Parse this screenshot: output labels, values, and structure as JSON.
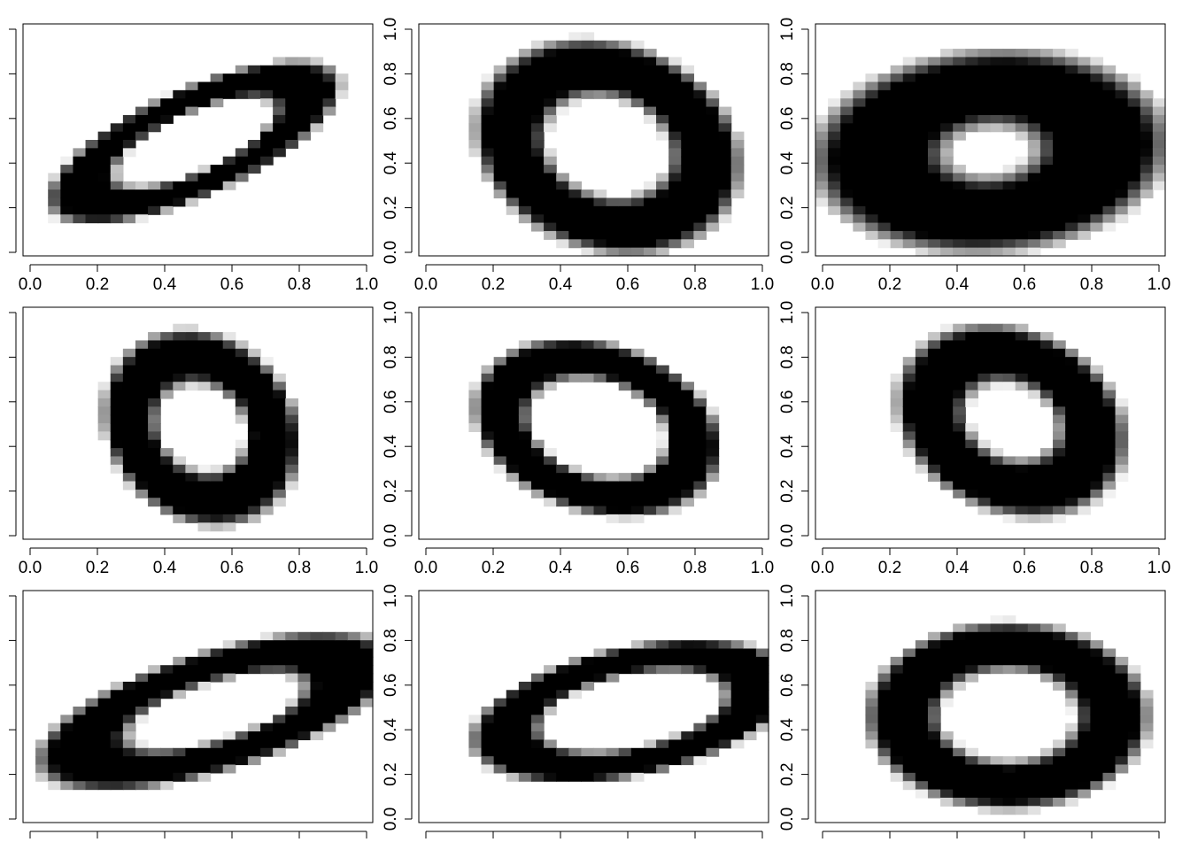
{
  "chart_data": {
    "type": "heatmap",
    "description_kind": "grid of 9 grayscale handwritten digit images (all zeros)",
    "rows": 3,
    "cols": 3,
    "xlim": [
      0,
      1
    ],
    "ylim": [
      0,
      1
    ],
    "x_ticks": [
      "0.0",
      "0.2",
      "0.4",
      "0.6",
      "0.8",
      "1.0"
    ],
    "y_ticks": [
      "0.0",
      "0.2",
      "0.4",
      "0.6",
      "0.8",
      "1.0"
    ],
    "colors": {
      "ink": "#000000",
      "paper": "#ffffff",
      "frame": "#000000"
    },
    "panels": [
      {
        "row": 0,
        "col": 0,
        "shape": "ellipse",
        "cx": 0.49,
        "cy": 0.49,
        "rx": 0.39,
        "ry": 0.16,
        "angle_deg": 38,
        "stroke": 0.055,
        "x_tick_labels_shown": true,
        "y_tick_labels_shown": false
      },
      {
        "row": 0,
        "col": 1,
        "shape": "ellipse",
        "cx": 0.54,
        "cy": 0.47,
        "rx": 0.27,
        "ry": 0.35,
        "angle_deg": 20,
        "stroke": 0.075,
        "x_tick_labels_shown": true,
        "y_tick_labels_shown": true
      },
      {
        "row": 0,
        "col": 2,
        "shape": "ellipse",
        "cx": 0.5,
        "cy": 0.45,
        "rx": 0.32,
        "ry": 0.27,
        "angle_deg": 15,
        "stroke": 0.12,
        "x_tick_labels_shown": true,
        "y_tick_labels_shown": true
      },
      {
        "row": 1,
        "col": 0,
        "shape": "ellipse",
        "cx": 0.51,
        "cy": 0.48,
        "rx": 0.2,
        "ry": 0.31,
        "angle_deg": 10,
        "stroke": 0.065,
        "x_tick_labels_shown": true,
        "y_tick_labels_shown": false
      },
      {
        "row": 1,
        "col": 1,
        "shape": "ellipse",
        "cx": 0.51,
        "cy": 0.48,
        "rx": 0.25,
        "ry": 0.32,
        "angle_deg": 35,
        "stroke": 0.055,
        "x_tick_labels_shown": true,
        "y_tick_labels_shown": true
      },
      {
        "row": 1,
        "col": 2,
        "shape": "ellipse",
        "cx": 0.56,
        "cy": 0.51,
        "rx": 0.22,
        "ry": 0.3,
        "angle_deg": 20,
        "stroke": 0.075,
        "x_tick_labels_shown": true,
        "y_tick_labels_shown": true
      },
      {
        "row": 2,
        "col": 0,
        "shape": "ellipse",
        "cx": 0.55,
        "cy": 0.48,
        "rx": 0.42,
        "ry": 0.18,
        "angle_deg": 28,
        "stroke": 0.07,
        "x_tick_labels_shown": false,
        "y_tick_labels_shown": false
      },
      {
        "row": 2,
        "col": 1,
        "shape": "ellipse",
        "cx": 0.61,
        "cy": 0.48,
        "rx": 0.38,
        "ry": 0.21,
        "angle_deg": 22,
        "stroke": 0.055,
        "x_tick_labels_shown": false,
        "y_tick_labels_shown": true
      },
      {
        "row": 2,
        "col": 2,
        "shape": "ellipse",
        "cx": 0.55,
        "cy": 0.46,
        "rx": 0.3,
        "ry": 0.3,
        "angle_deg": 10,
        "stroke": 0.07,
        "x_tick_labels_shown": false,
        "y_tick_labels_shown": true
      }
    ]
  }
}
